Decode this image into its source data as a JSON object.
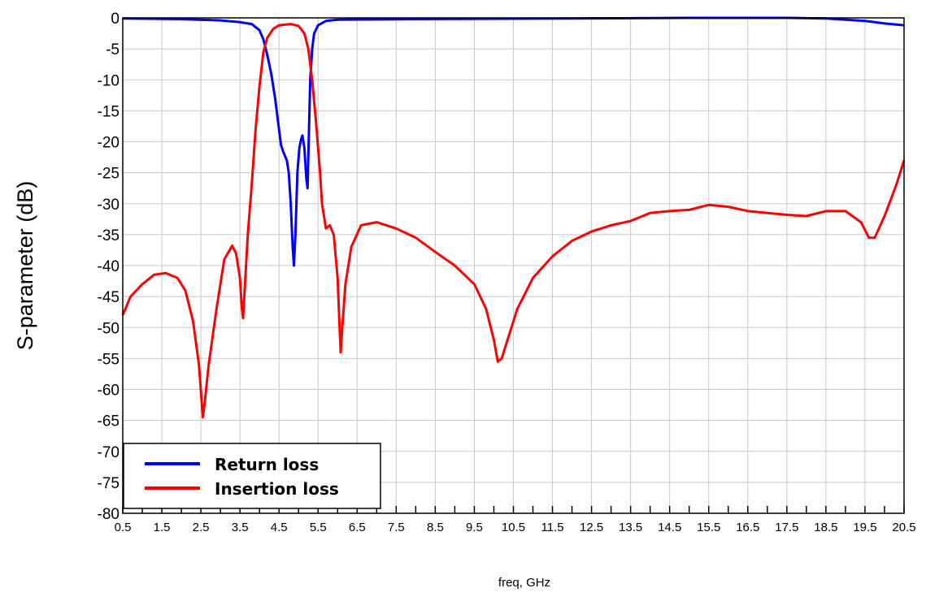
{
  "chart_data": {
    "type": "line",
    "xlabel": "freq, GHz",
    "ylabel": "S-parameter (dB)",
    "xlim": [
      0.5,
      20.5
    ],
    "ylim": [
      -80,
      0
    ],
    "grid": true,
    "legend_position": "bottom-left",
    "x_ticks": [
      "0.5",
      "1.5",
      "2.5",
      "3.5",
      "4.5",
      "5.5",
      "6.5",
      "7.5",
      "8.5",
      "9.5",
      "10.5",
      "11.5",
      "12.5",
      "13.5",
      "14.5",
      "15.5",
      "16.5",
      "17.5",
      "18.5",
      "19.5",
      "20.5"
    ],
    "y_ticks": [
      "0",
      "-5",
      "-10",
      "-15",
      "-20",
      "-25",
      "-30",
      "-35",
      "-40",
      "-45",
      "-50",
      "-55",
      "-60",
      "-65",
      "-70",
      "-75",
      "-80"
    ],
    "series": [
      {
        "name": "Return loss",
        "color": "#0000ff",
        "points": [
          [
            0.5,
            -0.1
          ],
          [
            2.0,
            -0.2
          ],
          [
            3.0,
            -0.4
          ],
          [
            3.5,
            -0.7
          ],
          [
            3.8,
            -1.0
          ],
          [
            4.0,
            -2.0
          ],
          [
            4.1,
            -3.5
          ],
          [
            4.2,
            -6
          ],
          [
            4.3,
            -9
          ],
          [
            4.4,
            -13
          ],
          [
            4.5,
            -18
          ],
          [
            4.55,
            -20.5
          ],
          [
            4.6,
            -21.5
          ],
          [
            4.7,
            -23
          ],
          [
            4.75,
            -25
          ],
          [
            4.8,
            -30
          ],
          [
            4.85,
            -37
          ],
          [
            4.88,
            -40
          ],
          [
            4.92,
            -35
          ],
          [
            4.97,
            -25
          ],
          [
            5.02,
            -21
          ],
          [
            5.07,
            -19.5
          ],
          [
            5.1,
            -19
          ],
          [
            5.15,
            -21
          ],
          [
            5.2,
            -26
          ],
          [
            5.23,
            -27.5
          ],
          [
            5.26,
            -20
          ],
          [
            5.3,
            -10
          ],
          [
            5.35,
            -5
          ],
          [
            5.4,
            -2.5
          ],
          [
            5.5,
            -1.2
          ],
          [
            5.7,
            -0.5
          ],
          [
            6.0,
            -0.3
          ],
          [
            8.0,
            -0.2
          ],
          [
            12.0,
            -0.1
          ],
          [
            15.0,
            0
          ],
          [
            17.5,
            0
          ],
          [
            18.5,
            -0.1
          ],
          [
            19.5,
            -0.5
          ],
          [
            20.0,
            -0.9
          ],
          [
            20.5,
            -1.2
          ]
        ]
      },
      {
        "name": "Insertion loss",
        "color": "#ff0000",
        "points": [
          [
            0.5,
            -48
          ],
          [
            0.7,
            -45
          ],
          [
            1.0,
            -43
          ],
          [
            1.3,
            -41.5
          ],
          [
            1.6,
            -41.2
          ],
          [
            1.9,
            -42
          ],
          [
            2.1,
            -44
          ],
          [
            2.3,
            -49
          ],
          [
            2.45,
            -56
          ],
          [
            2.52,
            -62
          ],
          [
            2.55,
            -64.5
          ],
          [
            2.6,
            -62
          ],
          [
            2.7,
            -56
          ],
          [
            2.9,
            -47
          ],
          [
            3.1,
            -39
          ],
          [
            3.3,
            -36.8
          ],
          [
            3.4,
            -38
          ],
          [
            3.5,
            -42
          ],
          [
            3.55,
            -47
          ],
          [
            3.58,
            -48.5
          ],
          [
            3.62,
            -44
          ],
          [
            3.7,
            -35
          ],
          [
            3.8,
            -27
          ],
          [
            3.9,
            -18
          ],
          [
            4.0,
            -11
          ],
          [
            4.1,
            -5.5
          ],
          [
            4.2,
            -3.2
          ],
          [
            4.35,
            -1.8
          ],
          [
            4.5,
            -1.2
          ],
          [
            4.8,
            -1.0
          ],
          [
            5.0,
            -1.3
          ],
          [
            5.15,
            -2.5
          ],
          [
            5.25,
            -5
          ],
          [
            5.35,
            -10
          ],
          [
            5.45,
            -17
          ],
          [
            5.55,
            -25
          ],
          [
            5.6,
            -30
          ],
          [
            5.7,
            -34
          ],
          [
            5.8,
            -33.5
          ],
          [
            5.9,
            -35
          ],
          [
            6.0,
            -42
          ],
          [
            6.05,
            -50
          ],
          [
            6.08,
            -54
          ],
          [
            6.12,
            -50
          ],
          [
            6.2,
            -43
          ],
          [
            6.35,
            -37
          ],
          [
            6.6,
            -33.5
          ],
          [
            7.0,
            -33
          ],
          [
            7.5,
            -34
          ],
          [
            8.0,
            -35.5
          ],
          [
            8.5,
            -37.8
          ],
          [
            9.0,
            -40
          ],
          [
            9.5,
            -43
          ],
          [
            9.8,
            -47
          ],
          [
            10.0,
            -52
          ],
          [
            10.1,
            -55.5
          ],
          [
            10.2,
            -55
          ],
          [
            10.35,
            -52
          ],
          [
            10.6,
            -47
          ],
          [
            11.0,
            -42
          ],
          [
            11.5,
            -38.5
          ],
          [
            12.0,
            -36
          ],
          [
            12.5,
            -34.5
          ],
          [
            13.0,
            -33.5
          ],
          [
            13.5,
            -32.8
          ],
          [
            14.0,
            -31.5
          ],
          [
            14.5,
            -31.2
          ],
          [
            15.0,
            -31
          ],
          [
            15.5,
            -30.2
          ],
          [
            16.0,
            -30.5
          ],
          [
            16.5,
            -31.2
          ],
          [
            17.0,
            -31.5
          ],
          [
            17.5,
            -31.8
          ],
          [
            18.0,
            -32
          ],
          [
            18.5,
            -31.2
          ],
          [
            19.0,
            -31.2
          ],
          [
            19.4,
            -33
          ],
          [
            19.6,
            -35.5
          ],
          [
            19.75,
            -35.5
          ],
          [
            20.0,
            -32
          ],
          [
            20.3,
            -27
          ],
          [
            20.5,
            -23
          ]
        ]
      }
    ]
  }
}
